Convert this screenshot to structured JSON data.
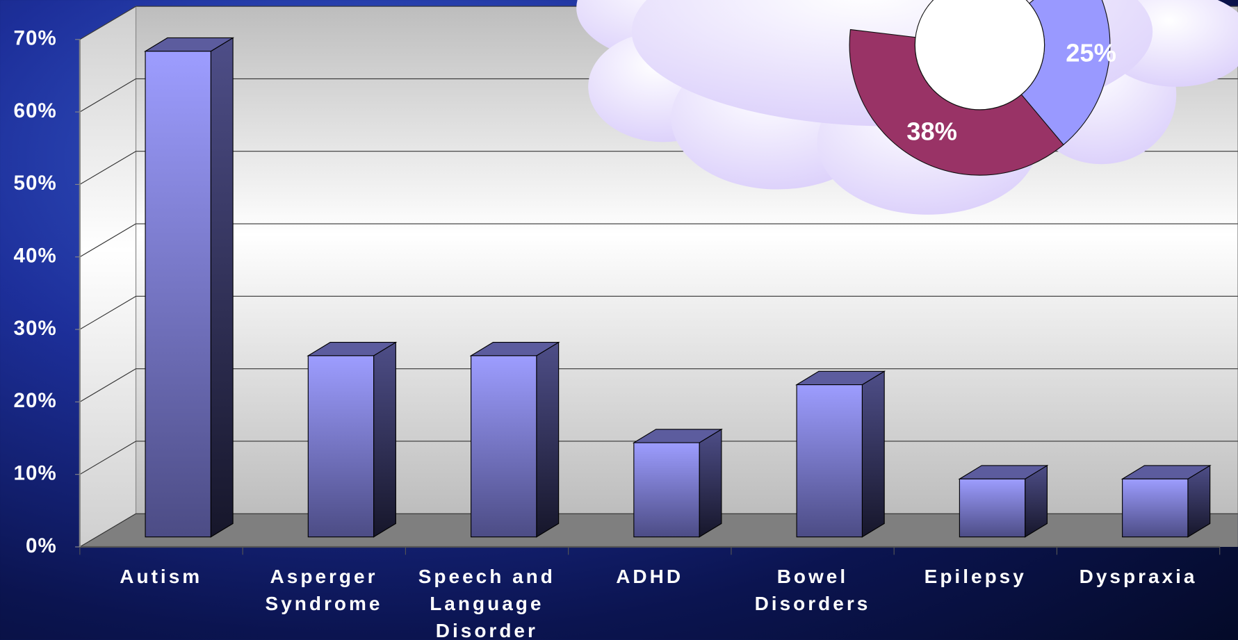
{
  "chart_data": [
    {
      "type": "bar3d",
      "categories": [
        "Autism",
        "Asperger Syndrome",
        "Speech and Language Disorder",
        "ADHD",
        "Bowel Disorders",
        "Epilepsy",
        "Dyspraxia"
      ],
      "values": [
        67,
        25,
        25,
        13,
        21,
        8,
        8
      ],
      "color": "#9999ff",
      "ylim": [
        0,
        70
      ],
      "yticks": [
        {
          "value": 0,
          "label": "0%"
        },
        {
          "value": 10,
          "label": "10%"
        },
        {
          "value": 20,
          "label": "20%"
        },
        {
          "value": 30,
          "label": "30%"
        },
        {
          "value": 40,
          "label": "40%"
        },
        {
          "value": 50,
          "label": "50%"
        },
        {
          "value": 60,
          "label": "60%"
        },
        {
          "value": 70,
          "label": "70%"
        }
      ],
      "grid": true
    },
    {
      "type": "donut",
      "values": [
        25,
        38
      ],
      "value_labels": [
        "25%",
        "38%"
      ],
      "colors": [
        "#9999ff",
        "#993366"
      ]
    }
  ]
}
